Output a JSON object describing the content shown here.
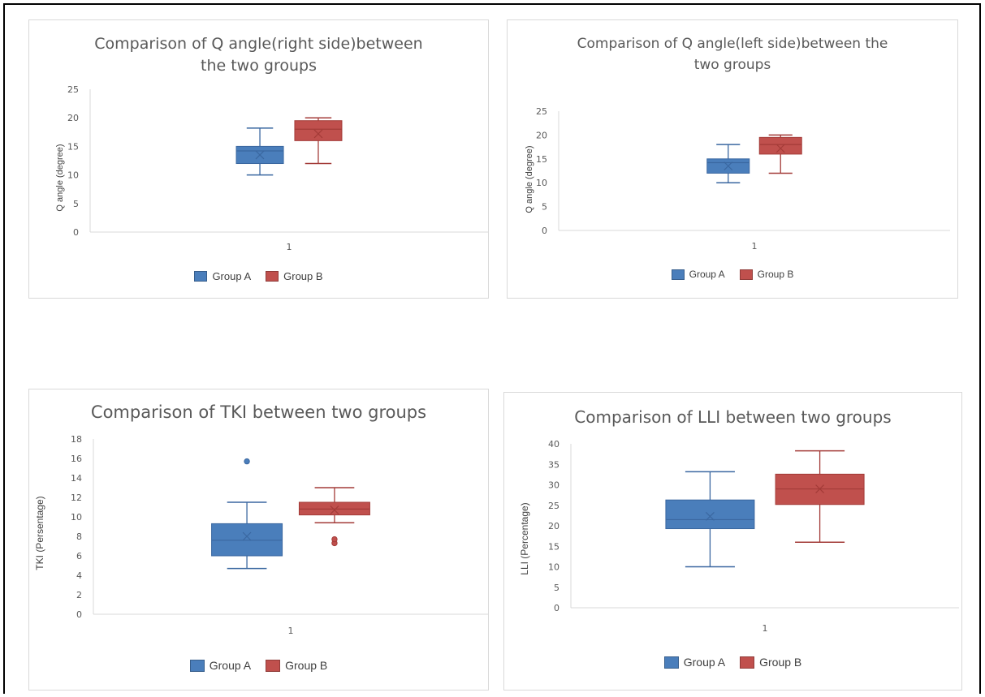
{
  "colors": {
    "group_a": "#4a7ebb",
    "group_b": "#c0504d",
    "group_a_edge": "#3a67a0",
    "group_b_edge": "#a33b38"
  },
  "chart_data": [
    {
      "type": "boxplot",
      "title_line1": "Comparison of Q angle(right side)between",
      "title_line2": "the two groups",
      "ylabel": "Q angle (degree)",
      "xlabel": "1",
      "ylim": [
        0,
        25
      ],
      "yticks": [
        0,
        5,
        10,
        15,
        20,
        25
      ],
      "legend_placement": "bottom",
      "series": [
        {
          "name": "Group A",
          "min": 10,
          "q1": 12,
          "median": 14.2,
          "q3": 15,
          "max": 18.2,
          "mean": 13.5,
          "outliers": []
        },
        {
          "name": "Group B",
          "min": 12,
          "q1": 16,
          "median": 18,
          "q3": 19.5,
          "max": 20,
          "mean": 17.2,
          "outliers": []
        }
      ]
    },
    {
      "type": "boxplot",
      "title_line1": "Comparison of Q angle(left side)between the",
      "title_line2": "two groups",
      "ylabel": "Q angle (degree)",
      "xlabel": "1",
      "ylim": [
        0,
        25
      ],
      "yticks": [
        0,
        5,
        10,
        15,
        20,
        25
      ],
      "legend_placement": "bottom",
      "series": [
        {
          "name": "Group A",
          "min": 10,
          "q1": 12,
          "median": 14.2,
          "q3": 15,
          "max": 18,
          "mean": 13.5,
          "outliers": []
        },
        {
          "name": "Group B",
          "min": 12,
          "q1": 16,
          "median": 18,
          "q3": 19.5,
          "max": 20,
          "mean": 17.2,
          "outliers": []
        }
      ]
    },
    {
      "type": "boxplot",
      "title_line1": "Comparison of TKI between two groups",
      "title_line2": "",
      "ylabel": "TKI (Persentage)",
      "xlabel": "1",
      "ylim": [
        0,
        18
      ],
      "yticks": [
        0,
        2,
        4,
        6,
        8,
        10,
        12,
        14,
        16,
        18
      ],
      "legend_placement": "bottom",
      "series": [
        {
          "name": "Group A",
          "min": 4.7,
          "q1": 6,
          "median": 7.6,
          "q3": 9.3,
          "max": 11.5,
          "mean": 8,
          "outliers": [
            15.7
          ]
        },
        {
          "name": "Group B",
          "min": 9.4,
          "q1": 10.2,
          "median": 10.8,
          "q3": 11.5,
          "max": 13,
          "mean": 10.7,
          "outliers": [
            7.3,
            7.7
          ]
        }
      ]
    },
    {
      "type": "boxplot",
      "title_line1": "Comparison of LLI between two groups",
      "title_line2": "",
      "ylabel": "LLI (Percentage)",
      "xlabel": "1",
      "ylim": [
        0,
        40
      ],
      "yticks": [
        0,
        5,
        10,
        15,
        20,
        25,
        30,
        35,
        40
      ],
      "legend_placement": "bottom",
      "series": [
        {
          "name": "Group A",
          "min": 10,
          "q1": 19.3,
          "median": 21.5,
          "q3": 26.3,
          "max": 33.2,
          "mean": 22.3,
          "outliers": []
        },
        {
          "name": "Group B",
          "min": 16,
          "q1": 25.2,
          "median": 29,
          "q3": 32.6,
          "max": 38.3,
          "mean": 29,
          "outliers": []
        }
      ]
    }
  ]
}
